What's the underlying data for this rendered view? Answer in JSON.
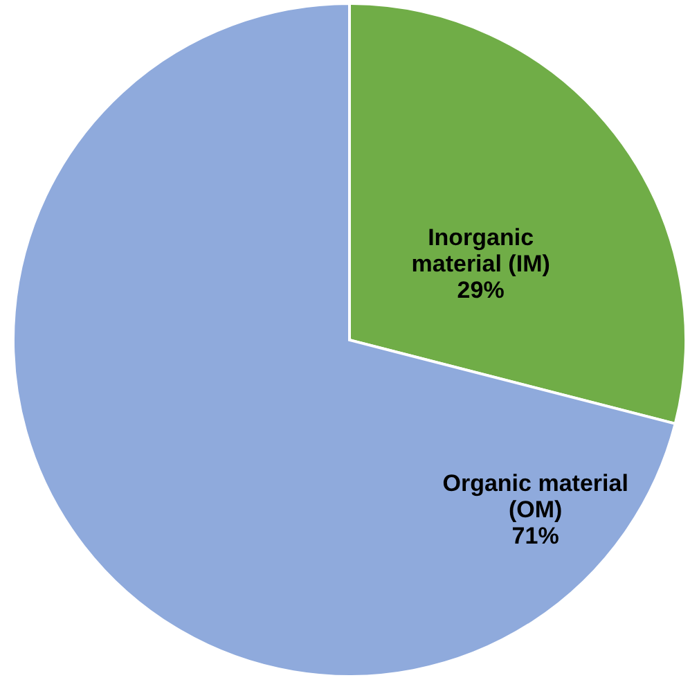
{
  "chart_data": {
    "type": "pie",
    "categories": [
      "Inorganic material (IM)",
      "Organic material (OM)"
    ],
    "values": [
      29,
      71
    ],
    "colors": [
      "#70ad47",
      "#8faadc"
    ],
    "value_labels": [
      "29%",
      "71%"
    ]
  }
}
